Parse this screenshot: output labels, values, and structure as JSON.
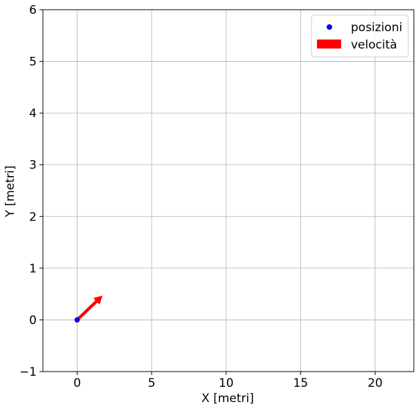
{
  "chart_data": {
    "type": "scatter",
    "xlabel": "X [metri]",
    "ylabel": "Y [metri]",
    "xlim": [
      -2.3,
      22.6
    ],
    "ylim": [
      -1,
      6
    ],
    "x_ticks": [
      0,
      5,
      10,
      15,
      20
    ],
    "y_ticks": [
      -1,
      0,
      1,
      2,
      3,
      4,
      5,
      6
    ],
    "x_tick_labels": [
      "0",
      "5",
      "10",
      "15",
      "20"
    ],
    "y_tick_labels": [
      "−1",
      "0",
      "1",
      "2",
      "3",
      "4",
      "5",
      "6"
    ],
    "grid": true,
    "legend_position": "top-right",
    "series": [
      {
        "name": "posizioni",
        "kind": "points",
        "color": "#0000ff",
        "points": [
          [
            0,
            0
          ]
        ]
      },
      {
        "name": "velocità",
        "kind": "arrows",
        "color": "#ff0000",
        "arrows": [
          {
            "x": 0,
            "y": 0,
            "dx": 1.7,
            "dy": 0.47
          }
        ]
      }
    ]
  }
}
